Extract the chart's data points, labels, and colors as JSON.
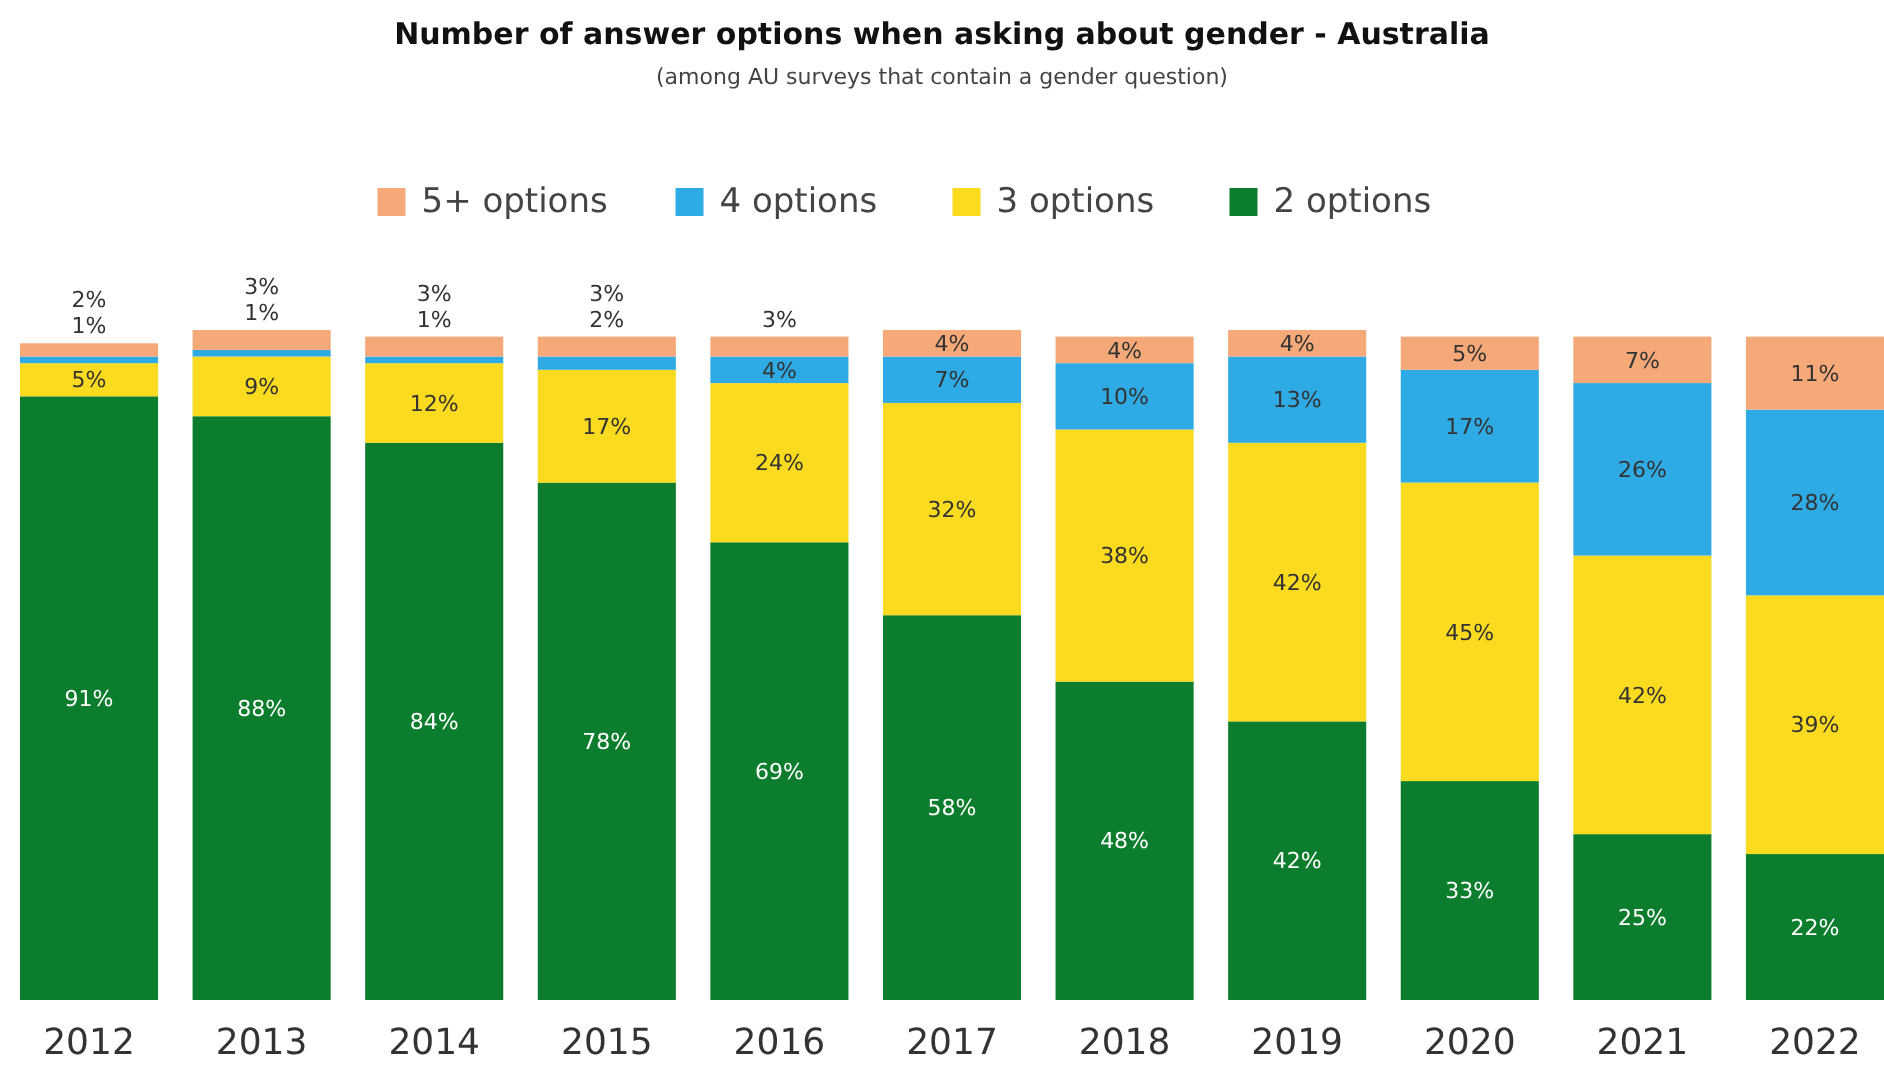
{
  "chart_data": {
    "type": "bar",
    "stacked": true,
    "title": "Number of answer options when asking about gender - Australia",
    "subtitle": "(among AU surveys that contain a gender question)",
    "categories": [
      "2012",
      "2013",
      "2014",
      "2015",
      "2016",
      "2017",
      "2018",
      "2019",
      "2020",
      "2021",
      "2022"
    ],
    "legend": "top",
    "series": [
      {
        "name": "2 options",
        "color": "#0b7d2c",
        "values": [
          91,
          88,
          84,
          78,
          69,
          58,
          48,
          42,
          33,
          25,
          22
        ],
        "value_labels": [
          "91%",
          "88%",
          "84%",
          "78%",
          "69%",
          "58%",
          "48%",
          "42%",
          "33%",
          "25%",
          "22%"
        ]
      },
      {
        "name": "3 options",
        "color": "#fbdb1f",
        "values": [
          5,
          9,
          12,
          17,
          24,
          32,
          38,
          42,
          45,
          42,
          39
        ],
        "value_labels": [
          "5%",
          "9%",
          "12%",
          "17%",
          "24%",
          "32%",
          "38%",
          "42%",
          "45%",
          "42%",
          "39%"
        ]
      },
      {
        "name": "4 options",
        "color": "#2eaae4",
        "values": [
          1,
          1,
          1,
          2,
          4,
          7,
          10,
          13,
          17,
          26,
          28
        ],
        "value_labels": [
          "1%",
          "1%",
          "1%",
          "2%",
          "4%",
          "7%",
          "10%",
          "13%",
          "17%",
          "26%",
          "28%"
        ]
      },
      {
        "name": "5+ options",
        "color": "#f5a878",
        "values": [
          2,
          3,
          3,
          3,
          3,
          4,
          4,
          4,
          5,
          7,
          11
        ],
        "value_labels": [
          "2%",
          "3%",
          "3%",
          "3%",
          "3%",
          "4%",
          "4%",
          "4%",
          "5%",
          "7%",
          "11%"
        ]
      }
    ]
  }
}
